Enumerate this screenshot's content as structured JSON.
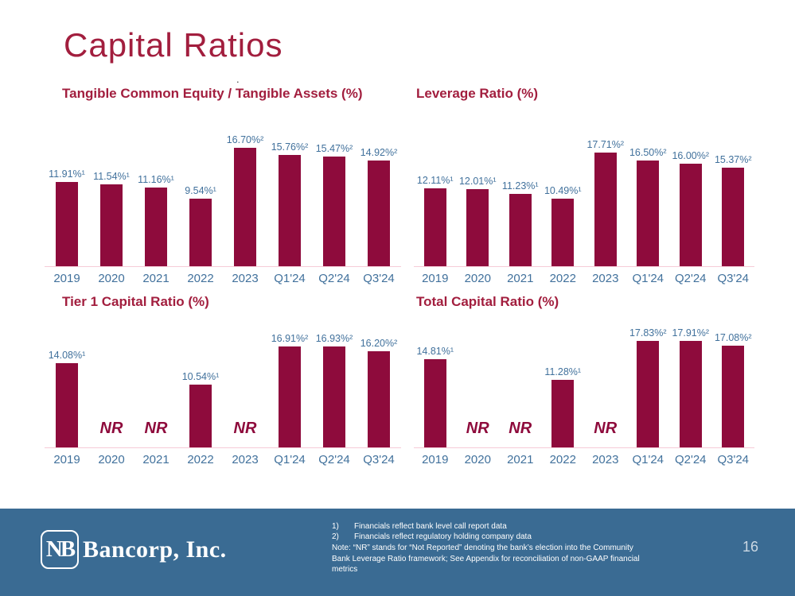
{
  "slide": {
    "title": "Capital Ratios",
    "stray_dot": ".",
    "page_number": "16"
  },
  "colors": {
    "bar_maroon": "#8E0B3C",
    "title_red": "#A21E3E",
    "label_blue": "#41719C",
    "footer_blue": "#3A6B93",
    "baseline_pink": "#F6CBD7"
  },
  "chart_data": [
    {
      "type": "bar",
      "title": "Tangible Common Equity / Tangible Assets (%)",
      "categories": [
        "2019",
        "2020",
        "2021",
        "2022",
        "2023",
        "Q1'24",
        "Q2'24",
        "Q3'24"
      ],
      "values": [
        11.91,
        11.54,
        11.16,
        9.54,
        16.7,
        15.76,
        15.47,
        14.92
      ],
      "data_labels": [
        "11.91%¹",
        "11.54%¹",
        "11.16%¹",
        "9.54%¹",
        "16.70%²",
        "15.76%²",
        "15.47%²",
        "14.92%²"
      ],
      "bar_color": "#8E0B3C",
      "legend": "none",
      "grid": "off",
      "ylim": [
        0,
        18
      ]
    },
    {
      "type": "bar",
      "title": "Leverage Ratio (%)",
      "categories": [
        "2019",
        "2020",
        "2021",
        "2022",
        "2023",
        "Q1'24",
        "Q2'24",
        "Q3'24"
      ],
      "values": [
        12.11,
        12.01,
        11.23,
        10.49,
        17.71,
        16.5,
        16.0,
        15.37
      ],
      "data_labels": [
        "12.11%¹",
        "12.01%¹",
        "11.23%¹",
        "10.49%¹",
        "17.71%²",
        "16.50%²",
        "16.00%²",
        "15.37%²"
      ],
      "bar_color": "#8E0B3C",
      "legend": "none",
      "grid": "off",
      "ylim": [
        0,
        19
      ]
    },
    {
      "type": "bar",
      "title": "Tier 1 Capital Ratio (%)",
      "categories": [
        "2019",
        "2020",
        "2021",
        "2022",
        "2023",
        "Q1'24",
        "Q2'24",
        "Q3'24"
      ],
      "values": [
        14.08,
        null,
        null,
        10.54,
        null,
        16.91,
        16.93,
        16.2
      ],
      "data_labels": [
        "14.08%¹",
        "NR",
        "NR",
        "10.54%¹",
        "NR",
        "16.91%²",
        "16.93%²",
        "16.20%²"
      ],
      "bar_color": "#8E0B3C",
      "legend": "none",
      "grid": "off",
      "ylim": [
        0,
        18
      ]
    },
    {
      "type": "bar",
      "title": "Total Capital Ratio (%)",
      "categories": [
        "2019",
        "2020",
        "2021",
        "2022",
        "2023",
        "Q1'24",
        "Q2'24",
        "Q3'24"
      ],
      "values": [
        14.81,
        null,
        null,
        11.28,
        null,
        17.83,
        17.91,
        17.08
      ],
      "data_labels": [
        "14.81%¹",
        "NR",
        "NR",
        "11.28%¹",
        "NR",
        "17.83%²",
        "17.91%²",
        "17.08%²"
      ],
      "bar_color": "#8E0B3C",
      "legend": "none",
      "grid": "off",
      "ylim": [
        0,
        19
      ]
    }
  ],
  "footer": {
    "logo_mark": "NB",
    "logo_text": "Bancorp, Inc.",
    "footnotes": [
      {
        "num": "1)",
        "text": "Financials reflect bank level call report data"
      },
      {
        "num": "2)",
        "text": "Financials reflect regulatory holding company data"
      }
    ],
    "note": "Note: “NR” stands for “Not Reported” denoting the bank’s election into the Community Bank Leverage Ratio framework; See Appendix for reconciliation of non-GAAP financial metrics"
  }
}
